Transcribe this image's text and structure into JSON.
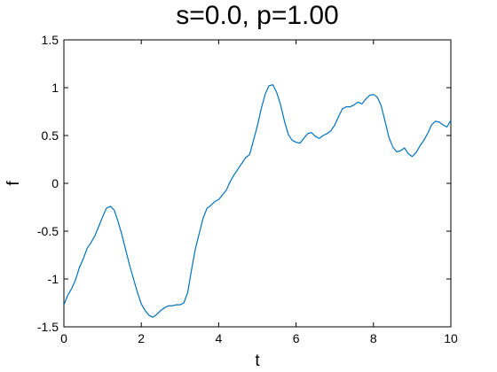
{
  "chart_data": {
    "type": "line",
    "title": "s=0.0, p=1.00",
    "xlabel": "t",
    "ylabel": "f",
    "xlim": [
      0,
      10
    ],
    "ylim": [
      -1.5,
      1.5
    ],
    "x_ticks": [
      0,
      2,
      4,
      6,
      8,
      10
    ],
    "x_tick_labels": [
      "0",
      "2",
      "4",
      "6",
      "8",
      "10"
    ],
    "y_ticks": [
      -1.5,
      -1,
      -0.5,
      0,
      0.5,
      1,
      1.5
    ],
    "y_tick_labels": [
      "-1.5",
      "-1",
      "-0.5",
      "0",
      "0.5",
      "1",
      "1.5"
    ],
    "grid": false,
    "series": [
      {
        "color": "#0072bd",
        "x": [
          0,
          0.1,
          0.2,
          0.3,
          0.4,
          0.5,
          0.6,
          0.7,
          0.8,
          0.9,
          1.0,
          1.1,
          1.2,
          1.3,
          1.4,
          1.5,
          1.6,
          1.7,
          1.8,
          1.9,
          2.0,
          2.1,
          2.2,
          2.3,
          2.4,
          2.5,
          2.6,
          2.7,
          2.8,
          2.9,
          3.0,
          3.1,
          3.2,
          3.3,
          3.4,
          3.5,
          3.6,
          3.7,
          3.8,
          3.9,
          4.0,
          4.1,
          4.2,
          4.3,
          4.4,
          4.5,
          4.6,
          4.7,
          4.8,
          4.9,
          5.0,
          5.1,
          5.2,
          5.3,
          5.4,
          5.5,
          5.6,
          5.7,
          5.8,
          5.9,
          6.0,
          6.1,
          6.2,
          6.3,
          6.4,
          6.5,
          6.6,
          6.7,
          6.8,
          6.9,
          7.0,
          7.1,
          7.2,
          7.3,
          7.4,
          7.5,
          7.6,
          7.7,
          7.8,
          7.9,
          8.0,
          8.1,
          8.2,
          8.3,
          8.4,
          8.5,
          8.6,
          8.7,
          8.8,
          8.9,
          9.0,
          9.1,
          9.2,
          9.3,
          9.4,
          9.5,
          9.6,
          9.7,
          9.8,
          9.9,
          10.0
        ],
        "y": [
          -1.27,
          -1.17,
          -1.1,
          -1.01,
          -0.88,
          -0.79,
          -0.68,
          -0.62,
          -0.55,
          -0.45,
          -0.35,
          -0.26,
          -0.24,
          -0.28,
          -0.4,
          -0.54,
          -0.7,
          -0.86,
          -1.0,
          -1.14,
          -1.26,
          -1.33,
          -1.38,
          -1.4,
          -1.37,
          -1.33,
          -1.3,
          -1.28,
          -1.28,
          -1.27,
          -1.27,
          -1.25,
          -1.14,
          -0.9,
          -0.68,
          -0.52,
          -0.36,
          -0.26,
          -0.23,
          -0.19,
          -0.17,
          -0.12,
          -0.07,
          0.02,
          0.09,
          0.15,
          0.21,
          0.27,
          0.3,
          0.45,
          0.6,
          0.78,
          0.93,
          1.02,
          1.03,
          0.95,
          0.82,
          0.65,
          0.51,
          0.45,
          0.43,
          0.42,
          0.47,
          0.52,
          0.53,
          0.49,
          0.47,
          0.5,
          0.52,
          0.55,
          0.61,
          0.7,
          0.78,
          0.8,
          0.8,
          0.82,
          0.85,
          0.83,
          0.88,
          0.92,
          0.93,
          0.9,
          0.81,
          0.65,
          0.48,
          0.38,
          0.33,
          0.34,
          0.37,
          0.31,
          0.28,
          0.32,
          0.39,
          0.45,
          0.52,
          0.61,
          0.65,
          0.64,
          0.61,
          0.59,
          0.66
        ]
      }
    ]
  }
}
